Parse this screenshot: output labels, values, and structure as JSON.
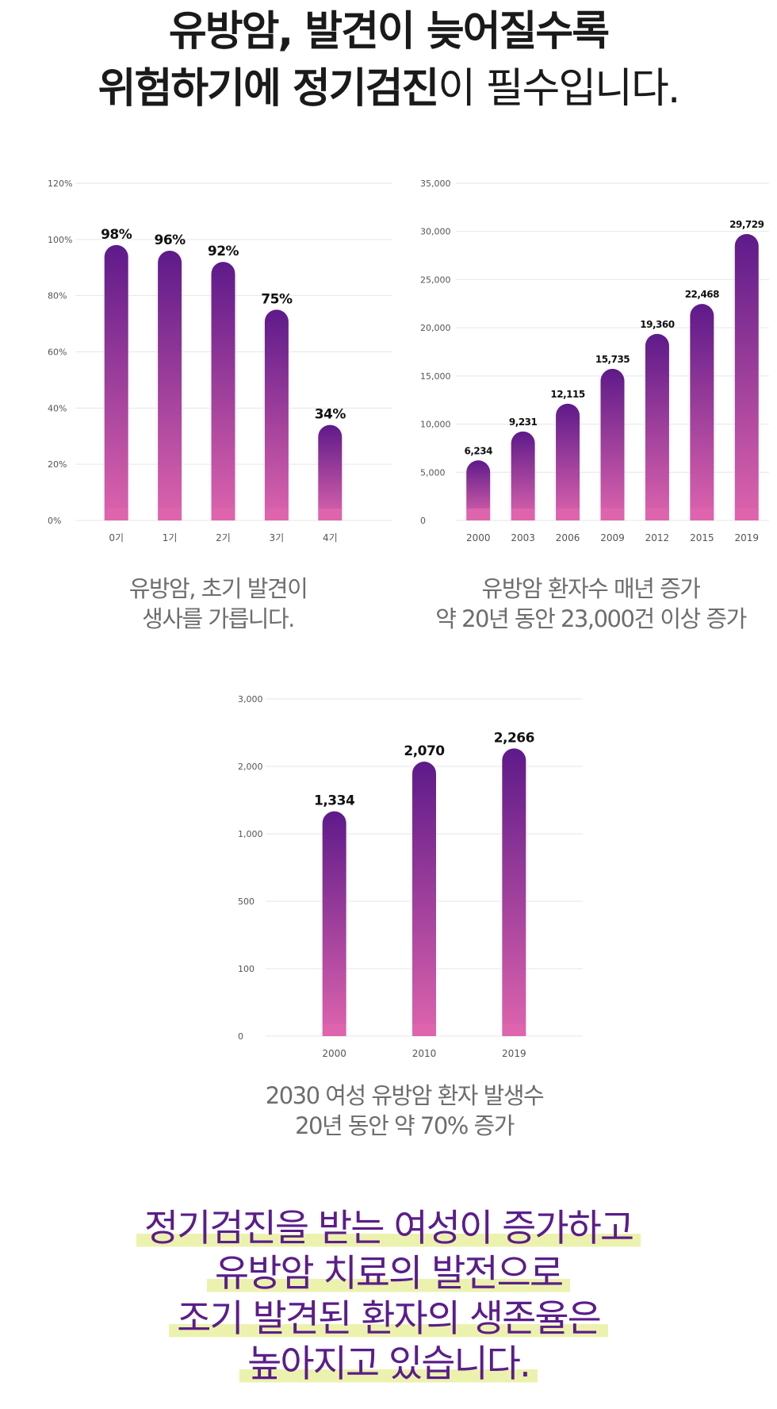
{
  "headline": {
    "line1": "유방암, 발견이 늦어질수록",
    "line2_bold": "위험하기에 정기검진",
    "line2_regular": "이 필수입니다."
  },
  "charts": {
    "stage_survival": {
      "caption_line1": "유방암, 초기 발견이",
      "caption_line2": "생사를 가릅니다."
    },
    "patients_trend": {
      "caption_line1": "유방암 환자수 매년 증가",
      "caption_line2": "약 20년 동안 23,000건 이상 증가"
    },
    "incidence_2030": {
      "caption_line1": "2030 여성 유방암 환자 발생수",
      "caption_line2": "20년 동안 약 70% 증가"
    }
  },
  "chart_data": [
    {
      "type": "bar",
      "categories": [
        "0기",
        "1기",
        "2기",
        "3기",
        "4기"
      ],
      "values": [
        98,
        96,
        92,
        75,
        34
      ],
      "data_labels": [
        "98%",
        "96%",
        "92%",
        "75%",
        "34%"
      ],
      "y_ticks": [
        "0%",
        "20%",
        "40%",
        "60%",
        "80%",
        "100%",
        "120%"
      ],
      "ylim": [
        0,
        120
      ],
      "grid": true
    },
    {
      "type": "bar",
      "categories": [
        "2000",
        "2003",
        "2006",
        "2009",
        "2012",
        "2015",
        "2019"
      ],
      "values": [
        6234,
        9231,
        12115,
        15735,
        19360,
        22468,
        29729
      ],
      "data_labels": [
        "6,234",
        "9,231",
        "12,115",
        "15,735",
        "19,360",
        "22,468",
        "29,729"
      ],
      "y_ticks": [
        "0",
        "5,000",
        "10,000",
        "15,000",
        "20,000",
        "25,000",
        "30,000",
        "35,000"
      ],
      "ylim": [
        0,
        35000
      ],
      "grid": true
    },
    {
      "type": "bar",
      "categories": [
        "2000",
        "2010",
        "2019"
      ],
      "values": [
        1334,
        2070,
        2266
      ],
      "data_labels": [
        "1,334",
        "2,070",
        "2,266"
      ],
      "y_ticks": [
        "0",
        "100",
        "500",
        "1,000",
        "2,000",
        "3,000"
      ],
      "y_tick_values": [
        0,
        100,
        500,
        1000,
        2000,
        3000
      ],
      "scale": "piecewise",
      "grid": true
    }
  ],
  "conclusion": {
    "line1": "정기검진을 받는 여성이 증가하고",
    "line2": "유방암 치료의 발전으로",
    "line3": "조기 발견된 환자의 생존율은",
    "line4": "높아지고 있습니다."
  },
  "colors": {
    "bar_top": "#5e1a8a",
    "bar_bottom": "#de64ad",
    "grid": "#e6e6e6",
    "conclusion_text": "#5b1d8a",
    "highlight": "#e8f0a0"
  }
}
